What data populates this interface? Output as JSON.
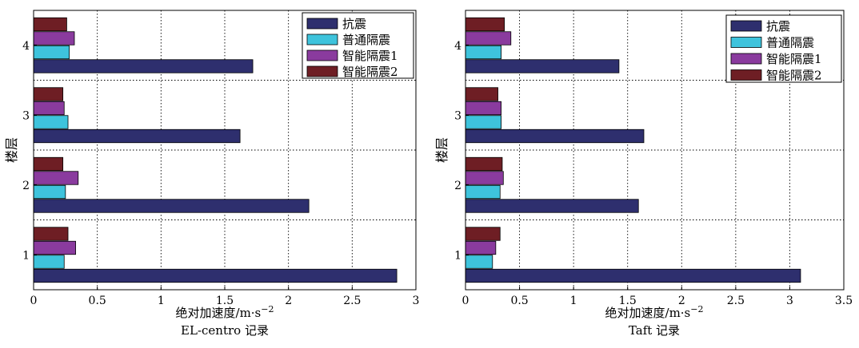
{
  "chart_data": [
    {
      "type": "bar",
      "orientation": "horizontal",
      "caption": "EL-centro 记录",
      "xlabel": "绝对加速度/m·s",
      "xlabel_sup": "−2",
      "ylabel": "楼层",
      "categories": [
        "1",
        "2",
        "3",
        "4"
      ],
      "xlim": [
        0,
        3
      ],
      "xticks": [
        "0",
        "0.5",
        "1",
        "1.5",
        "2",
        "2.5",
        "3"
      ],
      "grid": true,
      "legend_position": "top-right",
      "series": [
        {
          "name": "抗震",
          "color": "#2e2f6e",
          "values": [
            2.85,
            2.16,
            1.62,
            1.72
          ]
        },
        {
          "name": "普通隔震",
          "color": "#3ec3dc",
          "values": [
            0.24,
            0.25,
            0.27,
            0.28
          ]
        },
        {
          "name": "智能隔震1",
          "color": "#8a3b9e",
          "values": [
            0.33,
            0.35,
            0.24,
            0.32
          ]
        },
        {
          "name": "智能隔震2",
          "color": "#6e1e24",
          "values": [
            0.27,
            0.23,
            0.23,
            0.26
          ]
        }
      ]
    },
    {
      "type": "bar",
      "orientation": "horizontal",
      "caption": "Taft 记录",
      "xlabel": "绝对加速度/m·s",
      "xlabel_sup": "−2",
      "ylabel": "楼层",
      "categories": [
        "1",
        "2",
        "3",
        "4"
      ],
      "xlim": [
        0,
        3.5
      ],
      "xticks": [
        "0",
        "0.5",
        "1",
        "1.5",
        "2",
        "2.5",
        "3",
        "3.5"
      ],
      "grid": true,
      "legend_position": "top-right",
      "series": [
        {
          "name": "抗震",
          "color": "#2e2f6e",
          "values": [
            3.1,
            1.6,
            1.65,
            1.42
          ]
        },
        {
          "name": "普通隔震",
          "color": "#3ec3dc",
          "values": [
            0.25,
            0.32,
            0.33,
            0.33
          ]
        },
        {
          "name": "智能隔震1",
          "color": "#8a3b9e",
          "values": [
            0.28,
            0.35,
            0.33,
            0.42
          ]
        },
        {
          "name": "智能隔震2",
          "color": "#6e1e24",
          "values": [
            0.32,
            0.34,
            0.3,
            0.36
          ]
        }
      ]
    }
  ]
}
